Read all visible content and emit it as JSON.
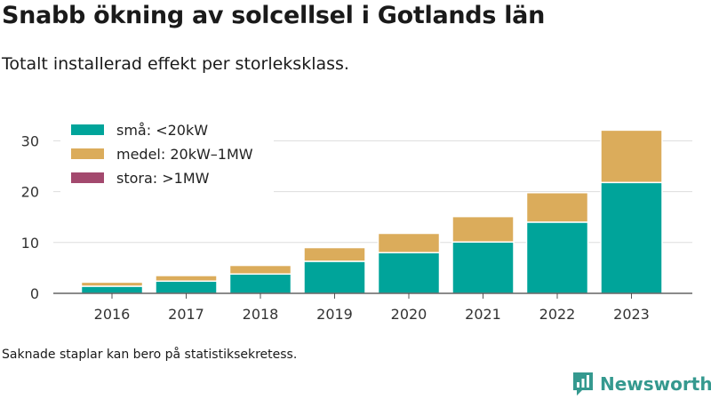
{
  "header": {
    "title": "Snabb ökning av solcellsel i Gotlands län",
    "subtitle": "Totalt installerad effekt per storleksklass."
  },
  "footer": {
    "note": "Saknade staplar kan bero på statistiksekretess.",
    "brand": "Newsworthy",
    "brand_icon": "bar-chart-speech-bubble-icon"
  },
  "chart_data": {
    "type": "bar",
    "stacked": true,
    "categories": [
      "2016",
      "2017",
      "2018",
      "2019",
      "2020",
      "2021",
      "2022",
      "2023"
    ],
    "series": [
      {
        "name": "små: <20kW",
        "color": "#00a49a",
        "values": [
          1.4,
          2.4,
          3.8,
          6.3,
          8.0,
          10.1,
          14.0,
          21.8
        ]
      },
      {
        "name": "medel: 20kW–1MW",
        "color": "#dbac5b",
        "values": [
          0.8,
          1.1,
          1.7,
          2.7,
          3.8,
          5.0,
          5.8,
          10.3
        ]
      },
      {
        "name": "stora: >1MW",
        "color": "#a3496e",
        "values": [
          0,
          0,
          0,
          0,
          0,
          0,
          0,
          0
        ]
      }
    ],
    "yticks": [
      0,
      10,
      20,
      30
    ],
    "ylim": [
      0,
      33
    ],
    "grid": true,
    "legend": "top-left"
  }
}
